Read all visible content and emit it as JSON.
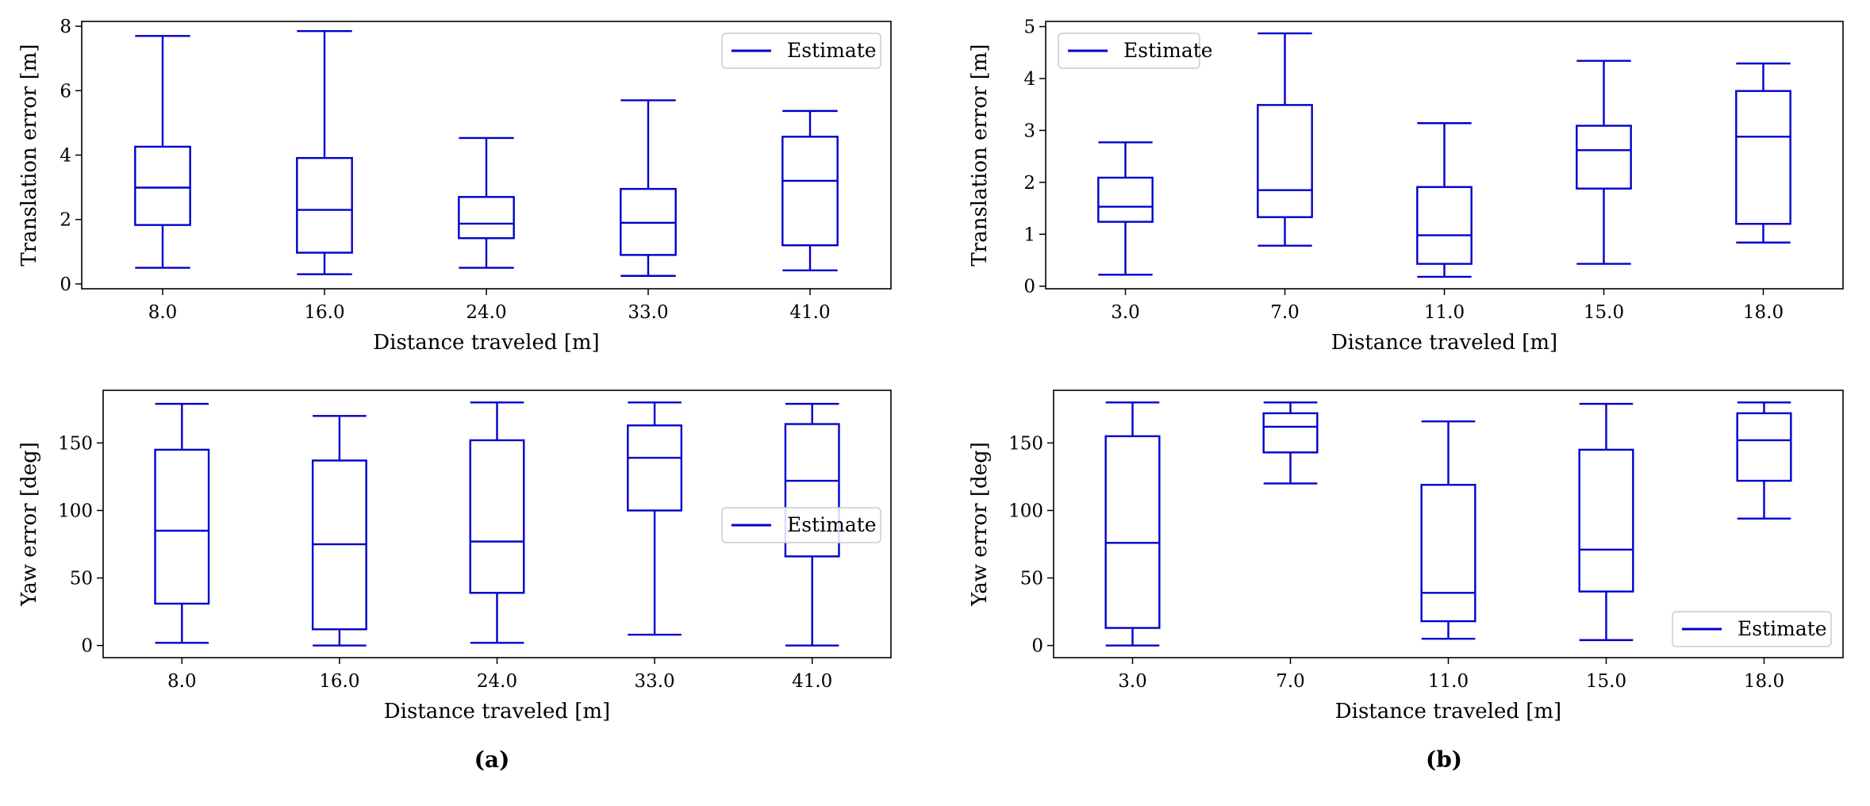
{
  "figure": {
    "captions": [
      "(a)",
      "(b)"
    ],
    "box_color": "#0000cc"
  },
  "chart_data": [
    {
      "type": "box",
      "panel": "a-top",
      "xlabel": "Distance traveled [m]",
      "ylabel": "Translation error [m]",
      "categories": [
        "8.0",
        "16.0",
        "24.0",
        "33.0",
        "41.0"
      ],
      "ylim": [
        -0.15,
        8.15
      ],
      "yticks": [
        0,
        2,
        4,
        6,
        8
      ],
      "legend": {
        "label": "Estimate",
        "position": "upper right"
      },
      "series": [
        {
          "name": "Estimate",
          "boxes": [
            {
              "whislo": 0.5,
              "q1": 1.83,
              "med": 2.99,
              "q3": 4.26,
              "whishi": 7.7
            },
            {
              "whislo": 0.3,
              "q1": 0.97,
              "med": 2.3,
              "q3": 3.91,
              "whishi": 7.85
            },
            {
              "whislo": 0.5,
              "q1": 1.42,
              "med": 1.87,
              "q3": 2.7,
              "whishi": 4.53
            },
            {
              "whislo": 0.25,
              "q1": 0.9,
              "med": 1.9,
              "q3": 2.95,
              "whishi": 5.7
            },
            {
              "whislo": 0.42,
              "q1": 1.2,
              "med": 3.2,
              "q3": 4.57,
              "whishi": 5.37
            }
          ]
        }
      ]
    },
    {
      "type": "box",
      "panel": "a-bottom",
      "xlabel": "Distance traveled [m]",
      "ylabel": "Yaw error [deg]",
      "categories": [
        "8.0",
        "16.0",
        "24.0",
        "33.0",
        "41.0"
      ],
      "ylim": [
        -9,
        189
      ],
      "yticks": [
        0,
        50,
        100,
        150
      ],
      "legend": {
        "label": "Estimate",
        "position": "center right"
      },
      "series": [
        {
          "name": "Estimate",
          "boxes": [
            {
              "whislo": 2,
              "q1": 31,
              "med": 85,
              "q3": 145,
              "whishi": 179
            },
            {
              "whislo": 0,
              "q1": 12,
              "med": 75,
              "q3": 137,
              "whishi": 170
            },
            {
              "whislo": 2,
              "q1": 39,
              "med": 77,
              "q3": 152,
              "whishi": 180
            },
            {
              "whislo": 8,
              "q1": 100,
              "med": 139,
              "q3": 163,
              "whishi": 180
            },
            {
              "whislo": 0,
              "q1": 66,
              "med": 122,
              "q3": 164,
              "whishi": 179
            }
          ]
        }
      ]
    },
    {
      "type": "box",
      "panel": "b-top",
      "xlabel": "Distance traveled [m]",
      "ylabel": "Translation error [m]",
      "categories": [
        "3.0",
        "7.0",
        "11.0",
        "15.0",
        "18.0"
      ],
      "ylim": [
        -0.05,
        5.1
      ],
      "yticks": [
        0,
        1,
        2,
        3,
        4,
        5
      ],
      "legend": {
        "label": "Estimate",
        "position": "upper left"
      },
      "series": [
        {
          "name": "Estimate",
          "boxes": [
            {
              "whislo": 0.22,
              "q1": 1.24,
              "med": 1.53,
              "q3": 2.09,
              "whishi": 2.77
            },
            {
              "whislo": 0.78,
              "q1": 1.33,
              "med": 1.85,
              "q3": 3.49,
              "whishi": 4.87
            },
            {
              "whislo": 0.18,
              "q1": 0.43,
              "med": 0.98,
              "q3": 1.91,
              "whishi": 3.14
            },
            {
              "whislo": 0.43,
              "q1": 1.88,
              "med": 2.62,
              "q3": 3.09,
              "whishi": 4.34
            },
            {
              "whislo": 0.84,
              "q1": 1.2,
              "med": 2.88,
              "q3": 3.76,
              "whishi": 4.29
            }
          ]
        }
      ]
    },
    {
      "type": "box",
      "panel": "b-bottom",
      "xlabel": "Distance traveled [m]",
      "ylabel": "Yaw error [deg]",
      "categories": [
        "3.0",
        "7.0",
        "11.0",
        "15.0",
        "18.0"
      ],
      "ylim": [
        -9,
        189
      ],
      "yticks": [
        0,
        50,
        100,
        150
      ],
      "legend": {
        "label": "Estimate",
        "position": "lower right"
      },
      "series": [
        {
          "name": "Estimate",
          "boxes": [
            {
              "whislo": 0,
              "q1": 13,
              "med": 76,
              "q3": 155,
              "whishi": 180
            },
            {
              "whislo": 120,
              "q1": 143,
              "med": 162,
              "q3": 172,
              "whishi": 180
            },
            {
              "whislo": 5,
              "q1": 18,
              "med": 39,
              "q3": 119,
              "whishi": 166
            },
            {
              "whislo": 4,
              "q1": 40,
              "med": 71,
              "q3": 145,
              "whishi": 179
            },
            {
              "whislo": 94,
              "q1": 122,
              "med": 152,
              "q3": 172,
              "whishi": 180
            }
          ]
        }
      ]
    }
  ]
}
